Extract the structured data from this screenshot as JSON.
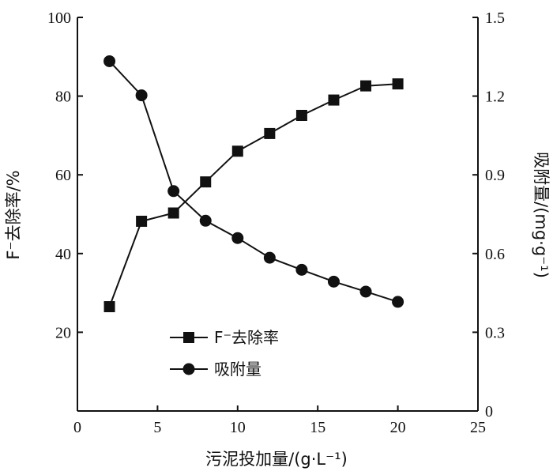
{
  "chart_data": {
    "type": "line",
    "xlabel": "污泥投加量/(g·L⁻¹)",
    "ylabel_left": "F⁻去除率/%",
    "ylabel_right": "吸附量/(mg·g⁻¹)",
    "xlim": [
      0,
      25
    ],
    "ylim_left": [
      0,
      100
    ],
    "ylim_right": [
      0,
      1.5
    ],
    "x_ticks": [
      "0",
      "5",
      "10",
      "15",
      "20",
      "25"
    ],
    "y_left_ticks": [
      "20",
      "40",
      "60",
      "80",
      "100"
    ],
    "y_right_ticks": [
      "0",
      "0.3",
      "0.6",
      "0.9",
      "1.2",
      "1.5"
    ],
    "grid": false,
    "legend_position": "bottom-center",
    "series": [
      {
        "name": "F⁻去除率",
        "axis": "left",
        "marker": "square",
        "x": [
          2,
          4,
          6,
          8,
          10,
          12,
          14,
          16,
          18,
          20
        ],
        "y": [
          26.5,
          48.2,
          50.3,
          58.2,
          66.0,
          70.5,
          75.1,
          79.0,
          82.6,
          83.1
        ]
      },
      {
        "name": "吸附量",
        "axis": "right",
        "marker": "circle",
        "x": [
          2,
          4,
          6,
          8,
          10,
          12,
          14,
          16,
          18,
          20
        ],
        "y": [
          1.333,
          1.203,
          0.838,
          0.725,
          0.659,
          0.584,
          0.538,
          0.493,
          0.455,
          0.416
        ]
      }
    ]
  }
}
